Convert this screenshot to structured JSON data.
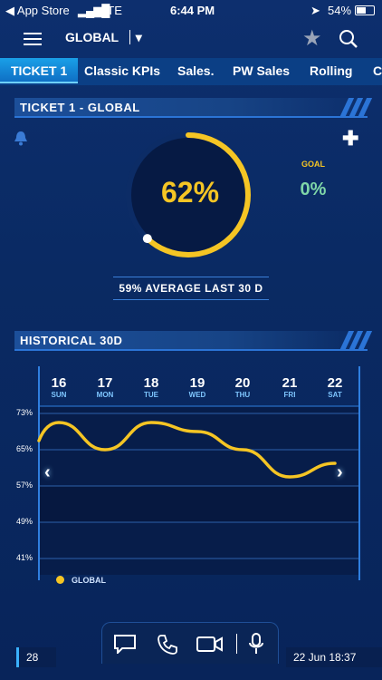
{
  "status_bar": {
    "carrier_app": "App Store",
    "network": "LTE",
    "time": "6:44 PM",
    "battery": "54%"
  },
  "header": {
    "scope": "GLOBAL"
  },
  "tabs": [
    "TICKET 1",
    "Classic KPIs",
    "Sales.",
    "PW Sales",
    "Rolling",
    "C"
  ],
  "kpi": {
    "section_title": "TICKET 1 - GLOBAL",
    "value_text": "62%",
    "progress": 0.62,
    "goal_label": "GOAL",
    "goal_value": "0%",
    "average_text": "59% AVERAGE LAST 30 D"
  },
  "historical": {
    "section_title": "HISTORICAL 30D",
    "legend": "GLOBAL"
  },
  "chart_data": {
    "type": "line",
    "x": [
      "16 SUN",
      "17 MON",
      "18 TUE",
      "19 WED",
      "20 THU",
      "21 FRI",
      "22 SAT"
    ],
    "day_numbers": [
      "16",
      "17",
      "18",
      "19",
      "20",
      "21",
      "22"
    ],
    "day_names": [
      "SUN",
      "MON",
      "TUE",
      "WED",
      "THU",
      "FRI",
      "SAT"
    ],
    "series": [
      {
        "name": "GLOBAL",
        "values": [
          71,
          65,
          71,
          69,
          65,
          59,
          62
        ]
      }
    ],
    "y_ticks": [
      "73%",
      "65%",
      "57%",
      "49%",
      "41%"
    ],
    "ylim": [
      41,
      73
    ],
    "color": "#f5c524"
  },
  "bottom_bar": {
    "left_count": "28",
    "datetime": "22 Jun 18:37"
  },
  "colors": {
    "accent": "#f5c524",
    "goal": "#7fd6a8",
    "tab_active": "#1aa0e8"
  }
}
